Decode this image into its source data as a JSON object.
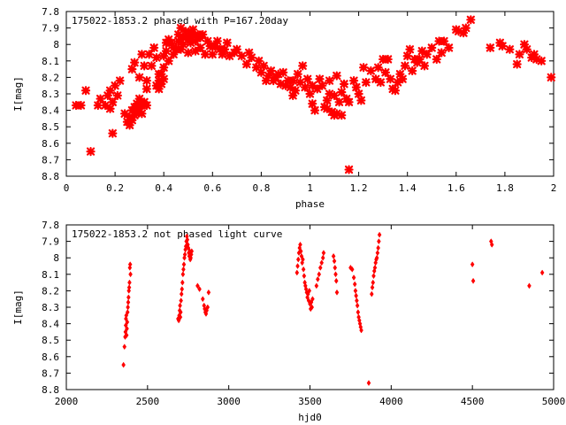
{
  "colors": {
    "points": "#ff0000",
    "axes": "#000000",
    "background": "#ffffff"
  },
  "chart_data": [
    {
      "type": "scatter",
      "title": "175022-1853.2 phased with P=167.20day",
      "xlabel": "phase",
      "ylabel": "I[mag]",
      "xlim": [
        0,
        2
      ],
      "ylim": [
        8.8,
        7.8
      ],
      "y_inverted": true,
      "grid": false,
      "marker": "star",
      "x_ticks": [
        "0",
        "0.2",
        "0.4",
        "0.6",
        "0.8",
        "1",
        "1.2",
        "1.4",
        "1.6",
        "1.8",
        "2"
      ],
      "y_ticks": [
        "7.8",
        "7.9",
        "8",
        "8.1",
        "8.2",
        "8.3",
        "8.4",
        "8.5",
        "8.6",
        "8.7",
        "8.8"
      ],
      "points": [
        [
          0.04,
          8.37
        ],
        [
          0.06,
          8.37
        ],
        [
          0.08,
          8.28
        ],
        [
          0.1,
          8.65
        ],
        [
          0.13,
          8.37
        ],
        [
          0.14,
          8.33
        ],
        [
          0.16,
          8.37
        ],
        [
          0.17,
          8.31
        ],
        [
          0.18,
          8.28
        ],
        [
          0.19,
          8.35
        ],
        [
          0.2,
          8.25
        ],
        [
          0.21,
          8.31
        ],
        [
          0.22,
          8.22
        ],
        [
          0.18,
          8.39
        ],
        [
          0.19,
          8.54
        ],
        [
          0.24,
          8.42
        ],
        [
          0.25,
          8.47
        ],
        [
          0.26,
          8.44
        ],
        [
          0.26,
          8.49
        ],
        [
          0.27,
          8.4
        ],
        [
          0.27,
          8.46
        ],
        [
          0.28,
          8.43
        ],
        [
          0.28,
          8.38
        ],
        [
          0.29,
          8.41
        ],
        [
          0.29,
          8.36
        ],
        [
          0.3,
          8.39
        ],
        [
          0.3,
          8.33
        ],
        [
          0.31,
          8.37
        ],
        [
          0.31,
          8.42
        ],
        [
          0.32,
          8.35
        ],
        [
          0.33,
          8.37
        ],
        [
          0.33,
          8.27
        ],
        [
          0.27,
          8.15
        ],
        [
          0.28,
          8.11
        ],
        [
          0.3,
          8.2
        ],
        [
          0.32,
          8.13
        ],
        [
          0.33,
          8.22
        ],
        [
          0.34,
          8.06
        ],
        [
          0.31,
          8.06
        ],
        [
          0.35,
          8.13
        ],
        [
          0.36,
          8.02
        ],
        [
          0.37,
          8.08
        ],
        [
          0.37,
          8.25
        ],
        [
          0.38,
          8.18
        ],
        [
          0.38,
          8.22
        ],
        [
          0.38,
          8.27
        ],
        [
          0.39,
          8.18
        ],
        [
          0.39,
          8.24
        ],
        [
          0.4,
          8.14
        ],
        [
          0.4,
          8.21
        ],
        [
          0.4,
          8.07
        ],
        [
          0.41,
          7.99
        ],
        [
          0.41,
          8.04
        ],
        [
          0.42,
          8.1
        ],
        [
          0.42,
          7.97
        ],
        [
          0.43,
          7.99
        ],
        [
          0.44,
          8.02
        ],
        [
          0.44,
          8.06
        ],
        [
          0.45,
          8.03
        ],
        [
          0.46,
          7.94
        ],
        [
          0.46,
          7.98
        ],
        [
          0.47,
          7.9
        ],
        [
          0.47,
          8.03
        ],
        [
          0.48,
          7.96
        ],
        [
          0.48,
          8.0
        ],
        [
          0.49,
          7.92
        ],
        [
          0.49,
          7.95
        ],
        [
          0.5,
          7.97
        ],
        [
          0.5,
          8.05
        ],
        [
          0.51,
          7.93
        ],
        [
          0.51,
          7.99
        ],
        [
          0.52,
          7.95
        ],
        [
          0.52,
          7.91
        ],
        [
          0.53,
          7.98
        ],
        [
          0.53,
          8.04
        ],
        [
          0.54,
          7.94
        ],
        [
          0.55,
          8.02
        ],
        [
          0.55,
          7.96
        ],
        [
          0.56,
          7.94
        ],
        [
          0.57,
          8.06
        ],
        [
          0.58,
          7.98
        ],
        [
          0.59,
          8.01
        ],
        [
          0.6,
          8.06
        ],
        [
          0.61,
          8.01
        ],
        [
          0.62,
          7.98
        ],
        [
          0.63,
          8.03
        ],
        [
          0.64,
          8.06
        ],
        [
          0.65,
          8.03
        ],
        [
          0.66,
          7.99
        ],
        [
          0.67,
          8.07
        ],
        [
          0.69,
          8.05
        ],
        [
          0.7,
          8.03
        ],
        [
          0.72,
          8.07
        ],
        [
          0.74,
          8.12
        ],
        [
          0.75,
          8.05
        ],
        [
          0.76,
          8.08
        ],
        [
          0.78,
          8.14
        ],
        [
          0.79,
          8.1
        ],
        [
          0.8,
          8.17
        ],
        [
          0.81,
          8.13
        ],
        [
          0.82,
          8.22
        ],
        [
          0.83,
          8.19
        ],
        [
          0.84,
          8.16
        ],
        [
          0.85,
          8.22
        ],
        [
          0.86,
          8.2
        ],
        [
          0.87,
          8.18
        ],
        [
          0.88,
          8.24
        ],
        [
          0.89,
          8.17
        ],
        [
          0.9,
          8.25
        ],
        [
          0.91,
          8.22
        ],
        [
          0.92,
          8.26
        ],
        [
          0.93,
          8.22
        ],
        [
          0.93,
          8.31
        ],
        [
          0.94,
          8.28
        ],
        [
          0.95,
          8.18
        ],
        [
          0.96,
          8.23
        ],
        [
          0.97,
          8.13
        ],
        [
          0.98,
          8.26
        ],
        [
          0.99,
          8.21
        ],
        [
          1.0,
          8.3
        ],
        [
          1.01,
          8.25
        ],
        [
          1.01,
          8.36
        ],
        [
          1.02,
          8.4
        ],
        [
          1.03,
          8.27
        ],
        [
          1.04,
          8.21
        ],
        [
          1.05,
          8.25
        ],
        [
          1.06,
          8.38
        ],
        [
          1.07,
          8.34
        ],
        [
          1.07,
          8.39
        ],
        [
          1.08,
          8.22
        ],
        [
          1.08,
          8.3
        ],
        [
          1.09,
          8.41
        ],
        [
          1.1,
          8.43
        ],
        [
          1.1,
          8.31
        ],
        [
          1.11,
          8.19
        ],
        [
          1.11,
          8.42
        ],
        [
          1.12,
          8.35
        ],
        [
          1.13,
          8.29
        ],
        [
          1.13,
          8.43
        ],
        [
          1.14,
          8.24
        ],
        [
          1.15,
          8.33
        ],
        [
          1.16,
          8.35
        ],
        [
          1.16,
          8.76
        ],
        [
          1.18,
          8.22
        ],
        [
          1.19,
          8.26
        ],
        [
          1.2,
          8.3
        ],
        [
          1.21,
          8.34
        ],
        [
          1.22,
          8.14
        ],
        [
          1.23,
          8.23
        ],
        [
          1.25,
          8.16
        ],
        [
          1.27,
          8.21
        ],
        [
          1.28,
          8.14
        ],
        [
          1.29,
          8.23
        ],
        [
          1.3,
          8.09
        ],
        [
          1.31,
          8.17
        ],
        [
          1.32,
          8.09
        ],
        [
          1.33,
          8.21
        ],
        [
          1.34,
          8.27
        ],
        [
          1.35,
          8.28
        ],
        [
          1.36,
          8.23
        ],
        [
          1.37,
          8.18
        ],
        [
          1.38,
          8.21
        ],
        [
          1.39,
          8.13
        ],
        [
          1.4,
          8.07
        ],
        [
          1.41,
          8.03
        ],
        [
          1.42,
          8.16
        ],
        [
          1.43,
          8.09
        ],
        [
          1.44,
          8.11
        ],
        [
          1.45,
          8.09
        ],
        [
          1.46,
          8.04
        ],
        [
          1.47,
          8.13
        ],
        [
          1.48,
          8.06
        ],
        [
          1.5,
          8.02
        ],
        [
          1.52,
          8.09
        ],
        [
          1.53,
          7.98
        ],
        [
          1.54,
          8.05
        ],
        [
          1.55,
          7.98
        ],
        [
          1.57,
          8.02
        ],
        [
          1.6,
          7.91
        ],
        [
          1.61,
          7.92
        ],
        [
          1.63,
          7.93
        ],
        [
          1.64,
          7.9
        ],
        [
          1.66,
          7.85
        ],
        [
          1.74,
          8.02
        ],
        [
          1.78,
          7.99
        ],
        [
          1.79,
          8.01
        ],
        [
          1.82,
          8.03
        ],
        [
          1.85,
          8.12
        ],
        [
          1.86,
          8.06
        ],
        [
          1.88,
          8.0
        ],
        [
          1.89,
          8.03
        ],
        [
          1.91,
          8.08
        ],
        [
          1.92,
          8.06
        ],
        [
          1.93,
          8.09
        ],
        [
          1.95,
          8.1
        ],
        [
          1.99,
          8.2
        ]
      ]
    },
    {
      "type": "scatter",
      "title": "175022-1853.2 not phased light curve",
      "xlabel": "hjd0",
      "ylabel": "I[mag]",
      "xlim": [
        2000,
        5000
      ],
      "ylim": [
        8.8,
        7.8
      ],
      "y_inverted": true,
      "grid": false,
      "marker": "diamond",
      "x_ticks": [
        "2000",
        "2500",
        "3000",
        "3500",
        "4000",
        "4500",
        "5000"
      ],
      "y_ticks": [
        "7.8",
        "7.9",
        "8",
        "8.1",
        "8.2",
        "8.3",
        "8.4",
        "8.5",
        "8.6",
        "8.7",
        "8.8"
      ],
      "points": [
        [
          2352,
          8.65
        ],
        [
          2358,
          8.54
        ],
        [
          2362,
          8.48
        ],
        [
          2364,
          8.45
        ],
        [
          2366,
          8.41
        ],
        [
          2367,
          8.37
        ],
        [
          2369,
          8.35
        ],
        [
          2371,
          8.47
        ],
        [
          2373,
          8.43
        ],
        [
          2375,
          8.39
        ],
        [
          2377,
          8.33
        ],
        [
          2379,
          8.3
        ],
        [
          2381,
          8.27
        ],
        [
          2383,
          8.24
        ],
        [
          2385,
          8.2
        ],
        [
          2387,
          8.18
        ],
        [
          2389,
          8.15
        ],
        [
          2391,
          8.06
        ],
        [
          2393,
          8.04
        ],
        [
          2395,
          8.1
        ],
        [
          2688,
          8.37
        ],
        [
          2692,
          8.38
        ],
        [
          2695,
          8.35
        ],
        [
          2698,
          8.32
        ],
        [
          2700,
          8.29
        ],
        [
          2702,
          8.36
        ],
        [
          2704,
          8.33
        ],
        [
          2706,
          8.26
        ],
        [
          2709,
          8.22
        ],
        [
          2712,
          8.19
        ],
        [
          2715,
          8.15
        ],
        [
          2718,
          8.1
        ],
        [
          2721,
          8.07
        ],
        [
          2724,
          8.04
        ],
        [
          2727,
          8.0
        ],
        [
          2730,
          7.98
        ],
        [
          2733,
          7.95
        ],
        [
          2736,
          7.93
        ],
        [
          2739,
          7.9
        ],
        [
          2742,
          7.87
        ],
        [
          2745,
          7.89
        ],
        [
          2748,
          7.92
        ],
        [
          2751,
          7.94
        ],
        [
          2754,
          7.97
        ],
        [
          2757,
          7.99
        ],
        [
          2760,
          7.96
        ],
        [
          2763,
          8.01
        ],
        [
          2766,
          8.0
        ],
        [
          2769,
          7.98
        ],
        [
          2772,
          7.96
        ],
        [
          2808,
          8.17
        ],
        [
          2820,
          8.19
        ],
        [
          2840,
          8.25
        ],
        [
          2848,
          8.29
        ],
        [
          2852,
          8.31
        ],
        [
          2856,
          8.33
        ],
        [
          2860,
          8.34
        ],
        [
          2864,
          8.32
        ],
        [
          2870,
          8.3
        ],
        [
          2876,
          8.21
        ],
        [
          3420,
          8.09
        ],
        [
          3424,
          8.05
        ],
        [
          3428,
          8.01
        ],
        [
          3432,
          7.97
        ],
        [
          3436,
          7.94
        ],
        [
          3440,
          7.92
        ],
        [
          3444,
          7.96
        ],
        [
          3448,
          7.99
        ],
        [
          3452,
          8.03
        ],
        [
          3456,
          8.01
        ],
        [
          3460,
          8.07
        ],
        [
          3464,
          8.11
        ],
        [
          3468,
          8.15
        ],
        [
          3472,
          8.17
        ],
        [
          3476,
          8.19
        ],
        [
          3480,
          8.21
        ],
        [
          3484,
          8.24
        ],
        [
          3488,
          8.22
        ],
        [
          3492,
          8.26
        ],
        [
          3496,
          8.2
        ],
        [
          3500,
          8.28
        ],
        [
          3504,
          8.31
        ],
        [
          3508,
          8.27
        ],
        [
          3512,
          8.3
        ],
        [
          3516,
          8.25
        ],
        [
          3540,
          8.17
        ],
        [
          3548,
          8.13
        ],
        [
          3556,
          8.1
        ],
        [
          3564,
          8.06
        ],
        [
          3572,
          8.03
        ],
        [
          3580,
          8.0
        ],
        [
          3584,
          7.97
        ],
        [
          3645,
          7.99
        ],
        [
          3650,
          8.02
        ],
        [
          3654,
          8.06
        ],
        [
          3658,
          8.1
        ],
        [
          3662,
          8.14
        ],
        [
          3666,
          8.21
        ],
        [
          3750,
          8.06
        ],
        [
          3760,
          8.07
        ],
        [
          3770,
          8.12
        ],
        [
          3776,
          8.16
        ],
        [
          3780,
          8.2
        ],
        [
          3784,
          8.23
        ],
        [
          3788,
          8.26
        ],
        [
          3792,
          8.29
        ],
        [
          3796,
          8.33
        ],
        [
          3800,
          8.36
        ],
        [
          3804,
          8.38
        ],
        [
          3808,
          8.4
        ],
        [
          3812,
          8.42
        ],
        [
          3816,
          8.44
        ],
        [
          3862,
          8.76
        ],
        [
          3880,
          8.22
        ],
        [
          3884,
          8.18
        ],
        [
          3888,
          8.15
        ],
        [
          3892,
          8.11
        ],
        [
          3896,
          8.08
        ],
        [
          3900,
          8.06
        ],
        [
          3904,
          8.03
        ],
        [
          3908,
          8.01
        ],
        [
          3912,
          8.0
        ],
        [
          3916,
          7.97
        ],
        [
          3920,
          7.94
        ],
        [
          3924,
          7.9
        ],
        [
          3928,
          7.86
        ],
        [
          4500,
          8.04
        ],
        [
          4505,
          8.14
        ],
        [
          4615,
          7.9
        ],
        [
          4620,
          7.92
        ],
        [
          4850,
          8.17
        ],
        [
          4930,
          8.09
        ]
      ]
    }
  ]
}
